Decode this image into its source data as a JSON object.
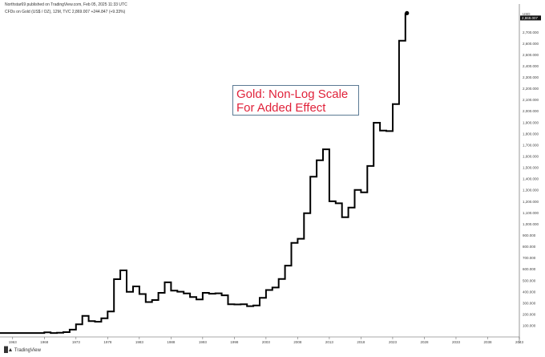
{
  "header": {
    "publisher": "Northstar69 published on TradingView.com, Feb 05, 2025 11:33 UTC",
    "symbol": "CFDs on Gold (US$ / OZ), 12M, TVC  2,869.007  +244.847 (+9.33%)"
  },
  "annotation": {
    "line1": "Gold: Non-Log Scale",
    "line2": "For Added Effect"
  },
  "footer": {
    "brand": "TradingView"
  },
  "price_tag": "2,869.007",
  "chart_data": {
    "type": "line",
    "step": true,
    "title": "",
    "currency_label": "USD",
    "x_ticks": [
      "1963",
      "1968",
      "1973",
      "1978",
      "1983",
      "1988",
      "1993",
      "1998",
      "2003",
      "2008",
      "2013",
      "2018",
      "2023",
      "2028",
      "2033",
      "2038",
      "2043"
    ],
    "y_ticks": [
      "100.000",
      "200.000",
      "300.000",
      "400.000",
      "500.000",
      "600.000",
      "700.000",
      "800.000",
      "900.000",
      "1,000.000",
      "1,100.000",
      "1,200.000",
      "1,300.000",
      "1,400.000",
      "1,500.000",
      "1,600.000",
      "1,700.000",
      "1,800.000",
      "1,900.000",
      "2,000.000",
      "2,100.000",
      "2,200.000",
      "2,300.000",
      "2,400.000",
      "2,500.000",
      "2,600.000",
      "2,700.000"
    ],
    "xlim": [
      1961,
      2043
    ],
    "ylim": [
      0,
      2950
    ],
    "series": [
      {
        "x": [
          1961,
          1962,
          1963,
          1964,
          1965,
          1966,
          1967,
          1968,
          1969,
          1970,
          1971,
          1972,
          1973,
          1974,
          1975,
          1976,
          1977,
          1978,
          1979,
          1980,
          1981,
          1982,
          1983,
          1984,
          1985,
          1986,
          1987,
          1988,
          1989,
          1990,
          1991,
          1992,
          1993,
          1994,
          1995,
          1996,
          1997,
          1998,
          1999,
          2000,
          2001,
          2002,
          2003,
          2004,
          2005,
          2006,
          2007,
          2008,
          2009,
          2010,
          2011,
          2012,
          2013,
          2014,
          2015,
          2016,
          2017,
          2018,
          2019,
          2020,
          2021,
          2022,
          2023,
          2024,
          2025
        ],
        "y": [
          35,
          35,
          35,
          35,
          35,
          35,
          35,
          41,
          35,
          37,
          43,
          65,
          112,
          186,
          140,
          135,
          165,
          226,
          512,
          590,
          400,
          448,
          380,
          309,
          327,
          391,
          484,
          410,
          401,
          386,
          353,
          333,
          391,
          383,
          387,
          369,
          290,
          288,
          290,
          273,
          279,
          347,
          416,
          438,
          513,
          632,
          834,
          870,
          1097,
          1420,
          1565,
          1663,
          1202,
          1184,
          1061,
          1146,
          1302,
          1282,
          1515,
          1898,
          1829,
          1824,
          2063,
          2625,
          2869
        ]
      }
    ]
  }
}
